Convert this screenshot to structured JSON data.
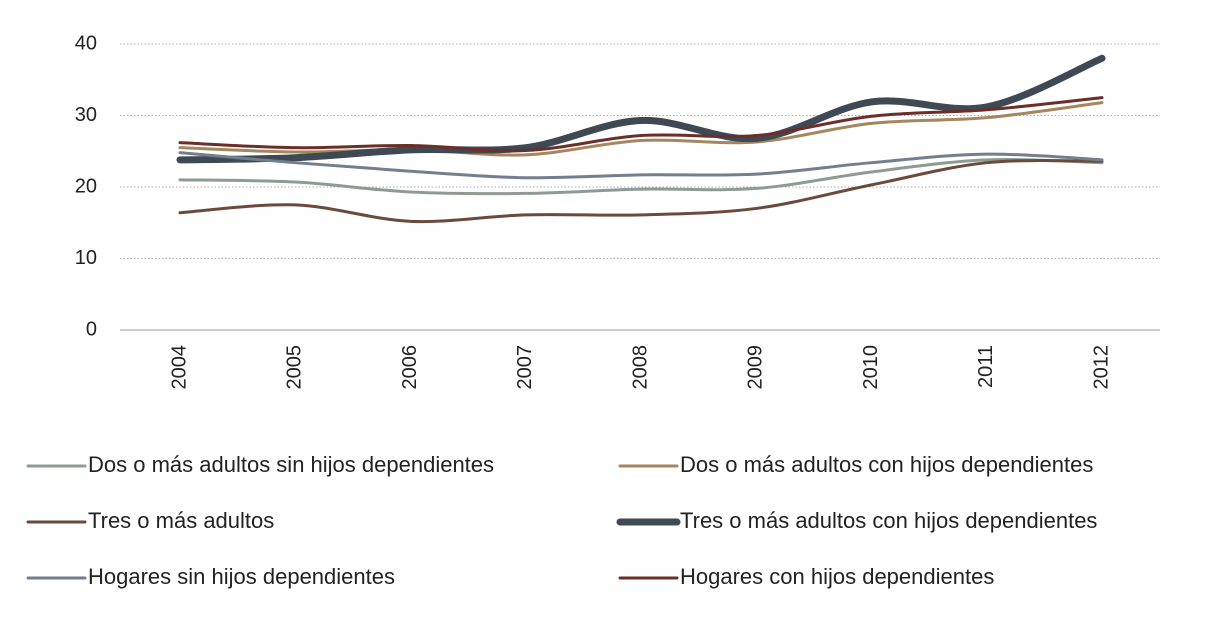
{
  "chart_data": {
    "type": "line",
    "categories": [
      "2004",
      "2005",
      "2006",
      "2007",
      "2008",
      "2009",
      "2010",
      "2011",
      "2012"
    ],
    "ylim": [
      0,
      40
    ],
    "yticks": [
      0,
      10,
      20,
      30,
      40
    ],
    "grid": true,
    "legend": "bottom",
    "series": [
      {
        "name": "Dos o más adultos sin hijos dependientes",
        "color": "#8c9c93",
        "linewidth": 3,
        "values": [
          21.0,
          20.7,
          19.3,
          19.1,
          19.7,
          19.8,
          22.1,
          23.8,
          23.4
        ]
      },
      {
        "name": "Dos o más adultos con hijos dependientes",
        "color": "#a4865f",
        "linewidth": 3,
        "values": [
          25.5,
          24.9,
          25.2,
          24.5,
          26.5,
          26.3,
          28.9,
          29.7,
          31.8
        ]
      },
      {
        "name": "Tres o más adultos",
        "color": "#6b4a3c",
        "linewidth": 3,
        "values": [
          16.4,
          17.5,
          15.2,
          16.1,
          16.1,
          17.0,
          20.3,
          23.4,
          23.6
        ]
      },
      {
        "name": "Tres o más adultos con hijos dependientes",
        "color": "#3e4954",
        "linewidth": 7,
        "values": [
          23.8,
          24.1,
          25.2,
          25.5,
          29.3,
          26.8,
          31.9,
          31.2,
          38.0
        ]
      },
      {
        "name": "Hogares sin hijos dependientes",
        "color": "#717f8e",
        "linewidth": 3,
        "values": [
          24.8,
          23.4,
          22.2,
          21.3,
          21.7,
          21.8,
          23.4,
          24.6,
          23.8
        ]
      },
      {
        "name": "Hogares con hijos dependientes",
        "color": "#6d2e28",
        "linewidth": 3,
        "values": [
          26.2,
          25.5,
          25.8,
          25.1,
          27.2,
          27.2,
          29.9,
          30.8,
          32.5
        ]
      }
    ]
  }
}
